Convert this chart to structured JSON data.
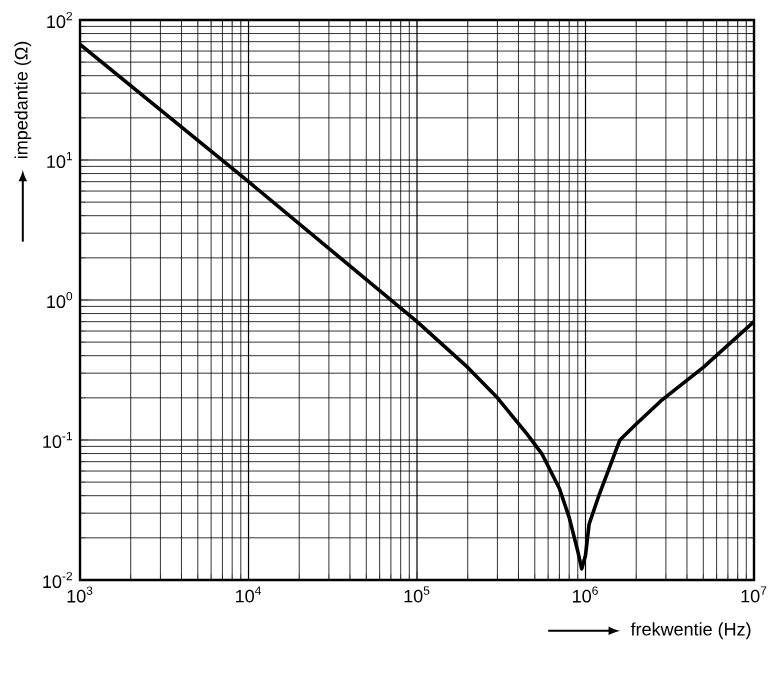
{
  "chart_data": {
    "type": "line",
    "xlabel": "frekwentie (Hz)",
    "ylabel": "impedantie (Ω)",
    "log": "xy",
    "grid": true,
    "color": "#000000",
    "line_style": "solid",
    "x": [
      1000,
      10000,
      100000,
      200000,
      300000,
      450000,
      550000,
      700000,
      800000,
      900000,
      950000,
      1000000,
      1050000,
      1200000,
      1600000,
      2000000,
      2800000,
      5000000,
      10000000
    ],
    "values": [
      67,
      7,
      0.7,
      0.33,
      0.2,
      0.11,
      0.08,
      0.045,
      0.028,
      0.016,
      0.012,
      0.015,
      0.025,
      0.04,
      0.1,
      0.13,
      0.19,
      0.33,
      0.7
    ],
    "xlim": [
      1000,
      10000000
    ],
    "ylim": [
      0.01,
      100
    ],
    "xticks": [
      {
        "value": 1000,
        "label": "10$^{3}$"
      },
      {
        "value": 10000,
        "label": "10$^{4}$"
      },
      {
        "value": 100000,
        "label": "10$^{5}$"
      },
      {
        "value": 1000000,
        "label": "10$^{6}$"
      },
      {
        "value": 10000000,
        "label": "10$^{7}$"
      }
    ],
    "yticks": [
      {
        "value": 0.01,
        "label": "10$^{-2}$"
      },
      {
        "value": 0.1,
        "label": "10$^{-1}$"
      },
      {
        "value": 1,
        "label": "10$^{0}$"
      },
      {
        "value": 10,
        "label": "10$^{1}$"
      },
      {
        "value": 100,
        "label": "10$^{2}$"
      }
    ]
  }
}
